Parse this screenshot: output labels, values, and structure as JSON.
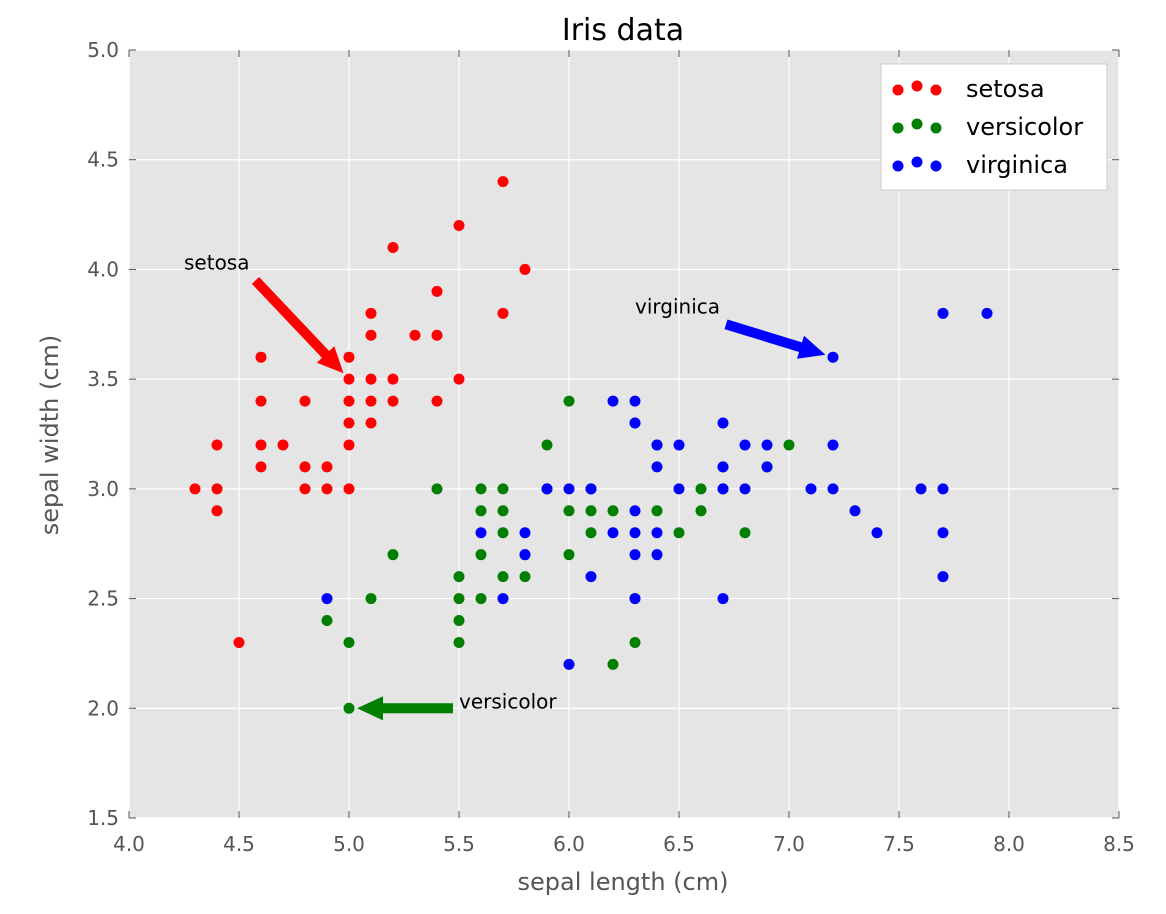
{
  "chart_data": {
    "type": "scatter",
    "title": "Iris data",
    "xlabel": "sepal length (cm)",
    "ylabel": "sepal width (cm)",
    "xlim": [
      4.0,
      8.5
    ],
    "ylim": [
      1.5,
      5.0
    ],
    "xticks": [
      4.0,
      4.5,
      5.0,
      5.5,
      6.0,
      6.5,
      7.0,
      7.5,
      8.0,
      8.5
    ],
    "yticks": [
      1.5,
      2.0,
      2.5,
      3.0,
      3.5,
      4.0,
      4.5,
      5.0
    ],
    "xtick_labels": [
      "4.0",
      "4.5",
      "5.0",
      "5.5",
      "6.0",
      "6.5",
      "7.0",
      "7.5",
      "8.0",
      "8.5"
    ],
    "ytick_labels": [
      "1.5",
      "2.0",
      "2.5",
      "3.0",
      "3.5",
      "4.0",
      "4.5",
      "5.0"
    ],
    "grid": true,
    "legend_position": "top-right",
    "series": [
      {
        "name": "setosa",
        "color": "#ff0000",
        "points": [
          [
            4.3,
            3.0
          ],
          [
            4.4,
            3.2
          ],
          [
            4.4,
            3.0
          ],
          [
            4.4,
            2.9
          ],
          [
            4.5,
            2.3
          ],
          [
            4.6,
            3.6
          ],
          [
            4.6,
            3.4
          ],
          [
            4.6,
            3.2
          ],
          [
            4.6,
            3.1
          ],
          [
            4.7,
            3.2
          ],
          [
            4.8,
            3.4
          ],
          [
            4.8,
            3.1
          ],
          [
            4.8,
            3.0
          ],
          [
            4.9,
            3.1
          ],
          [
            4.9,
            3.0
          ],
          [
            5.0,
            3.6
          ],
          [
            5.0,
            3.5
          ],
          [
            5.0,
            3.4
          ],
          [
            5.0,
            3.3
          ],
          [
            5.0,
            3.2
          ],
          [
            5.0,
            3.0
          ],
          [
            5.1,
            3.8
          ],
          [
            5.1,
            3.7
          ],
          [
            5.1,
            3.5
          ],
          [
            5.1,
            3.4
          ],
          [
            5.1,
            3.3
          ],
          [
            5.2,
            4.1
          ],
          [
            5.2,
            3.5
          ],
          [
            5.2,
            3.4
          ],
          [
            5.3,
            3.7
          ],
          [
            5.4,
            3.9
          ],
          [
            5.4,
            3.7
          ],
          [
            5.4,
            3.4
          ],
          [
            5.5,
            4.2
          ],
          [
            5.5,
            3.5
          ],
          [
            5.7,
            4.4
          ],
          [
            5.7,
            3.8
          ],
          [
            5.8,
            4.0
          ]
        ]
      },
      {
        "name": "versicolor",
        "color": "#007f00",
        "points": [
          [
            4.9,
            2.4
          ],
          [
            5.0,
            2.3
          ],
          [
            5.0,
            2.0
          ],
          [
            5.1,
            2.5
          ],
          [
            5.2,
            2.7
          ],
          [
            5.4,
            3.0
          ],
          [
            5.5,
            2.6
          ],
          [
            5.5,
            2.5
          ],
          [
            5.5,
            2.4
          ],
          [
            5.5,
            2.3
          ],
          [
            5.6,
            3.0
          ],
          [
            5.6,
            2.9
          ],
          [
            5.6,
            2.7
          ],
          [
            5.6,
            2.5
          ],
          [
            5.7,
            3.0
          ],
          [
            5.7,
            2.9
          ],
          [
            5.7,
            2.8
          ],
          [
            5.7,
            2.6
          ],
          [
            5.8,
            2.7
          ],
          [
            5.8,
            2.6
          ],
          [
            5.9,
            3.2
          ],
          [
            5.9,
            3.0
          ],
          [
            6.0,
            3.4
          ],
          [
            6.0,
            2.9
          ],
          [
            6.0,
            2.7
          ],
          [
            6.1,
            3.0
          ],
          [
            6.1,
            2.9
          ],
          [
            6.1,
            2.8
          ],
          [
            6.2,
            2.9
          ],
          [
            6.2,
            2.2
          ],
          [
            6.3,
            3.3
          ],
          [
            6.3,
            2.5
          ],
          [
            6.3,
            2.3
          ],
          [
            6.4,
            3.2
          ],
          [
            6.4,
            2.9
          ],
          [
            6.5,
            2.8
          ],
          [
            6.6,
            3.0
          ],
          [
            6.6,
            2.9
          ],
          [
            6.7,
            3.1
          ],
          [
            6.7,
            3.0
          ],
          [
            6.8,
            2.8
          ],
          [
            6.9,
            3.1
          ],
          [
            7.0,
            3.2
          ]
        ]
      },
      {
        "name": "virginica",
        "color": "#0000ff",
        "points": [
          [
            4.9,
            2.5
          ],
          [
            5.6,
            2.8
          ],
          [
            5.7,
            2.5
          ],
          [
            5.8,
            2.8
          ],
          [
            5.8,
            2.7
          ],
          [
            5.9,
            3.0
          ],
          [
            6.0,
            3.0
          ],
          [
            6.0,
            2.2
          ],
          [
            6.1,
            3.0
          ],
          [
            6.1,
            2.6
          ],
          [
            6.2,
            3.4
          ],
          [
            6.2,
            2.8
          ],
          [
            6.3,
            3.4
          ],
          [
            6.3,
            3.3
          ],
          [
            6.3,
            2.9
          ],
          [
            6.3,
            2.8
          ],
          [
            6.3,
            2.7
          ],
          [
            6.3,
            2.5
          ],
          [
            6.4,
            3.2
          ],
          [
            6.4,
            3.1
          ],
          [
            6.4,
            2.8
          ],
          [
            6.4,
            2.7
          ],
          [
            6.5,
            3.2
          ],
          [
            6.5,
            3.0
          ],
          [
            6.7,
            3.3
          ],
          [
            6.7,
            3.1
          ],
          [
            6.7,
            3.0
          ],
          [
            6.7,
            2.5
          ],
          [
            6.8,
            3.2
          ],
          [
            6.8,
            3.0
          ],
          [
            6.9,
            3.2
          ],
          [
            6.9,
            3.1
          ],
          [
            7.1,
            3.0
          ],
          [
            7.2,
            3.6
          ],
          [
            7.2,
            3.2
          ],
          [
            7.2,
            3.0
          ],
          [
            7.3,
            2.9
          ],
          [
            7.4,
            2.8
          ],
          [
            7.6,
            3.0
          ],
          [
            7.7,
            3.8
          ],
          [
            7.7,
            3.0
          ],
          [
            7.7,
            2.8
          ],
          [
            7.7,
            2.6
          ],
          [
            7.9,
            3.8
          ]
        ]
      }
    ],
    "annotations": [
      {
        "text": "setosa",
        "color": "#ff0000",
        "text_xy": [
          4.25,
          4.0
        ],
        "target": [
          5.0,
          3.5
        ]
      },
      {
        "text": "virginica",
        "color": "#0000ff",
        "text_xy": [
          6.3,
          3.8
        ],
        "target": [
          7.2,
          3.6
        ]
      },
      {
        "text": "versicolor",
        "color": "#007f00",
        "text_xy": [
          5.5,
          2.0
        ],
        "target": [
          5.0,
          2.0
        ]
      }
    ]
  }
}
